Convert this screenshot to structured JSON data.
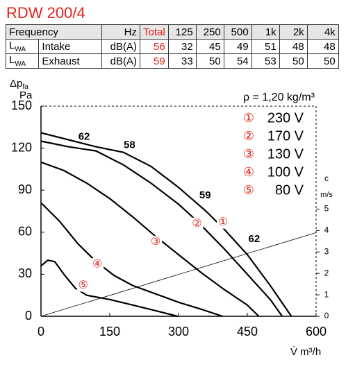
{
  "chart_data": {
    "type": "line",
    "title": "RDW 200/4",
    "table": {
      "columns": [
        "Frequency",
        "Hz",
        "Total",
        "125",
        "250",
        "500",
        "1k",
        "2k",
        "4k"
      ],
      "rows": [
        {
          "symbol": "L",
          "symbol_sub": "WA",
          "name": "Intake",
          "unit": "dB(A)",
          "values": [
            56,
            32,
            45,
            49,
            51,
            48,
            48
          ]
        },
        {
          "symbol": "L",
          "symbol_sub": "WA",
          "name": "Exhaust",
          "unit": "dB(A)",
          "values": [
            59,
            33,
            50,
            54,
            53,
            50,
            50
          ]
        }
      ]
    },
    "y_label": "Δp",
    "y_label_sub": "fa",
    "y_unit": "Pa",
    "x_label": "V̇ m³/h",
    "y2_label": "c",
    "y2_unit": "m/s",
    "density_label": "ρ = 1,20 kg/m³",
    "xlim": [
      0,
      600
    ],
    "xticks": [
      0,
      150,
      300,
      450,
      600
    ],
    "ylim": [
      0,
      150
    ],
    "yticks": [
      0,
      30,
      60,
      90,
      120,
      150
    ],
    "y2lim": [
      0,
      9.8
    ],
    "y2ticks": [
      0,
      1,
      2,
      3,
      4,
      5
    ],
    "series": [
      {
        "name": "230 V",
        "marker": "①",
        "marker_at": [
          397,
          67
        ],
        "color": "#000",
        "x": [
          0,
          60,
          120,
          180,
          240,
          300,
          360,
          400,
          450,
          500,
          546
        ],
        "values": [
          131,
          126,
          121,
          117,
          107,
          92,
          75,
          62,
          44,
          22,
          0
        ]
      },
      {
        "name": "170 V",
        "marker": "②",
        "marker_at": [
          340,
          66
        ],
        "color": "#000",
        "x": [
          0,
          60,
          120,
          180,
          240,
          300,
          340,
          400,
          450,
          500,
          526
        ],
        "values": [
          125,
          121,
          118,
          108,
          95,
          80,
          68,
          48,
          30,
          12,
          0
        ]
      },
      {
        "name": "130 V",
        "marker": "③",
        "marker_at": [
          250,
          53
        ],
        "color": "#000",
        "x": [
          0,
          50,
          100,
          150,
          200,
          250,
          300,
          350,
          400,
          450,
          475
        ],
        "values": [
          110,
          104,
          95,
          84,
          71,
          57,
          44,
          31,
          19,
          8,
          0
        ]
      },
      {
        "name": "100 V",
        "marker": "④",
        "marker_at": [
          123,
          37
        ],
        "color": "#000",
        "x": [
          0,
          40,
          80,
          120,
          160,
          200,
          250,
          300,
          350,
          396
        ],
        "values": [
          81,
          68,
          52,
          39,
          29,
          22,
          16,
          10,
          5,
          0
        ]
      },
      {
        "name": "80 V",
        "marker": "⑤",
        "marker_at": [
          92,
          22
        ],
        "color": "#000",
        "x": [
          0,
          15,
          30,
          50,
          75,
          100,
          150,
          200,
          250,
          298
        ],
        "values": [
          36,
          40,
          39,
          30,
          20,
          15,
          12,
          8,
          4,
          0
        ]
      },
      {
        "axis": "y2",
        "color": "#000",
        "x": [
          0,
          600
        ],
        "values": [
          0,
          3.9
        ]
      }
    ],
    "annotations": [
      {
        "text": "62",
        "x": 94,
        "y": 128
      },
      {
        "text": "58",
        "x": 193,
        "y": 122
      },
      {
        "text": "59",
        "x": 358,
        "y": 86
      },
      {
        "text": "62",
        "x": 465,
        "y": 55
      }
    ],
    "marker_color": "#e2231a"
  }
}
